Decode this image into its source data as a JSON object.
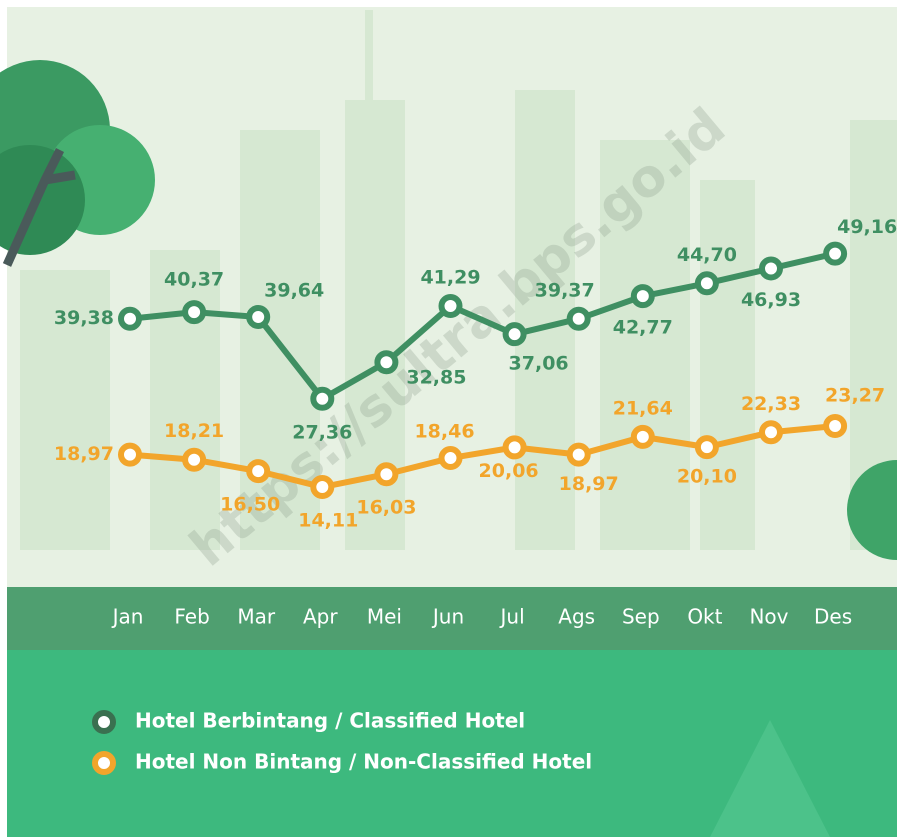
{
  "chart_data": {
    "type": "line",
    "categories": [
      "Jan",
      "Feb",
      "Mar",
      "Apr",
      "Mei",
      "Jun",
      "Jul",
      "Ags",
      "Sep",
      "Okt",
      "Nov",
      "Des"
    ],
    "series": [
      {
        "name": "Hotel Berbintang / Classified Hotel",
        "color": "#3f8f62",
        "values": [
          39.38,
          40.37,
          39.64,
          27.36,
          32.85,
          41.29,
          37.06,
          39.37,
          42.77,
          44.7,
          46.93,
          49.16
        ],
        "value_labels": [
          "39,38",
          "40,37",
          "39,64",
          "27,36",
          "32,85",
          "41,29",
          "37,06",
          "39,37",
          "42,77",
          "44,70",
          "46,93",
          "49,16"
        ]
      },
      {
        "name": "Hotel Non Bintang / Non-Classified Hotel",
        "color": "#f2a52b",
        "values": [
          18.97,
          18.21,
          16.5,
          14.11,
          16.03,
          18.46,
          20.06,
          18.97,
          21.64,
          20.1,
          22.33,
          23.27
        ],
        "value_labels": [
          "18,97",
          "18,21",
          "16,50",
          "14,11",
          "16,03",
          "18,46",
          "20,06",
          "18,97",
          "21,64",
          "20,10",
          "22,33",
          "23,27"
        ]
      }
    ],
    "watermark": "https://sultra.bps.go.id"
  }
}
